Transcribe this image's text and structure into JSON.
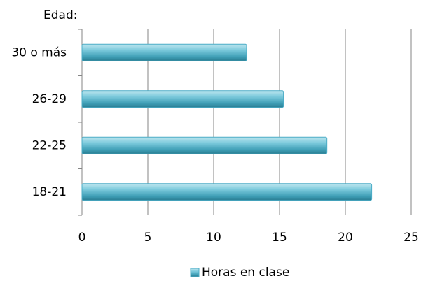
{
  "chart_data": {
    "type": "barh",
    "y_axis_label": "Edad:",
    "categories": [
      "18-21",
      "22-25",
      "26-29",
      "30 o más"
    ],
    "series": [
      {
        "name": "Horas en clase",
        "color": "#4bacc6",
        "values": [
          22,
          18.6,
          15.3,
          12.5
        ]
      }
    ],
    "xlim": [
      0,
      25
    ],
    "xticks": [
      0,
      5,
      10,
      15,
      20,
      25
    ],
    "grid": true,
    "legend": "bottom"
  }
}
